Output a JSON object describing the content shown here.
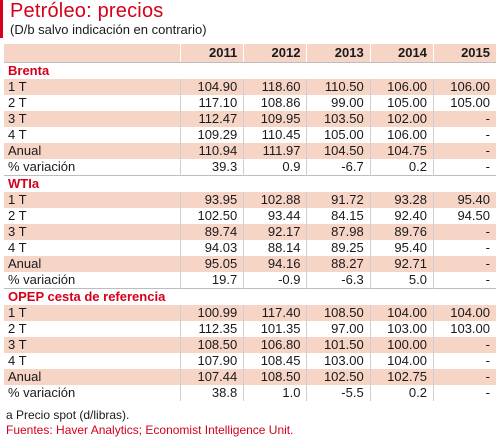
{
  "title": "Petróleo: precios",
  "subtitle": "(D/b salvo indicación en contrario)",
  "columns": [
    "2011",
    "2012",
    "2013",
    "2014",
    "2015"
  ],
  "sections": [
    {
      "name": "Brenta",
      "rows": [
        {
          "label": "1 T",
          "values": [
            "104.90",
            "118.60",
            "110.50",
            "106.00",
            "106.00"
          ]
        },
        {
          "label": "2 T",
          "values": [
            "117.10",
            "108.86",
            "99.00",
            "105.00",
            "105.00"
          ]
        },
        {
          "label": "3 T",
          "values": [
            "112.47",
            "109.95",
            "103.50",
            "102.00",
            "-"
          ]
        },
        {
          "label": "4 T",
          "values": [
            "109.29",
            "110.45",
            "105.00",
            "106.00",
            "-"
          ]
        },
        {
          "label": "Anual",
          "values": [
            "110.94",
            "111.97",
            "104.50",
            "104.75",
            "-"
          ]
        },
        {
          "label": " % variación",
          "values": [
            "39.3",
            "0.9",
            "-6.7",
            "0.2",
            "-"
          ]
        }
      ]
    },
    {
      "name": "WTIa",
      "rows": [
        {
          "label": "1 T",
          "values": [
            "93.95",
            "102.88",
            "91.72",
            "93.28",
            "95.40"
          ]
        },
        {
          "label": "2 T",
          "values": [
            "102.50",
            "93.44",
            "84.15",
            "92.40",
            "94.50"
          ]
        },
        {
          "label": "3 T",
          "values": [
            "89.74",
            "92.17",
            "87.98",
            "89.76",
            "-"
          ]
        },
        {
          "label": "4 T",
          "values": [
            "94.03",
            "88.14",
            "89.25",
            "95.40",
            "-"
          ]
        },
        {
          "label": "Anual",
          "values": [
            "95.05",
            "94.16",
            "88.27",
            "92.71",
            "-"
          ]
        },
        {
          "label": " % variación",
          "values": [
            "19.7",
            "-0.9",
            "-6.3",
            "5.0",
            "-"
          ]
        }
      ]
    },
    {
      "name": "OPEP cesta de referencia",
      "rows": [
        {
          "label": "1 T",
          "values": [
            "100.99",
            "117.40",
            "108.50",
            "104.00",
            "104.00"
          ]
        },
        {
          "label": "2 T",
          "values": [
            "112.35",
            "101.35",
            "97.00",
            "103.00",
            "103.00"
          ]
        },
        {
          "label": "3 T",
          "values": [
            "108.50",
            "106.80",
            "101.50",
            "100.00",
            "-"
          ]
        },
        {
          "label": "4 T",
          "values": [
            "107.90",
            "108.45",
            "103.00",
            "104.00",
            "-"
          ]
        },
        {
          "label": "Anual",
          "values": [
            "107.44",
            "108.50",
            "102.50",
            "102.75",
            "-"
          ]
        },
        {
          "label": " % variación",
          "values": [
            "38.8",
            "1.0",
            "-5.5",
            "0.2",
            "-"
          ]
        }
      ]
    }
  ],
  "footnote": "a Precio spot (d/libras).",
  "source": "Fuentes: Haver Analytics; Economist Intelligence Unit.",
  "colors": {
    "accent": "#d6001c",
    "band": "#f6d4c6"
  }
}
